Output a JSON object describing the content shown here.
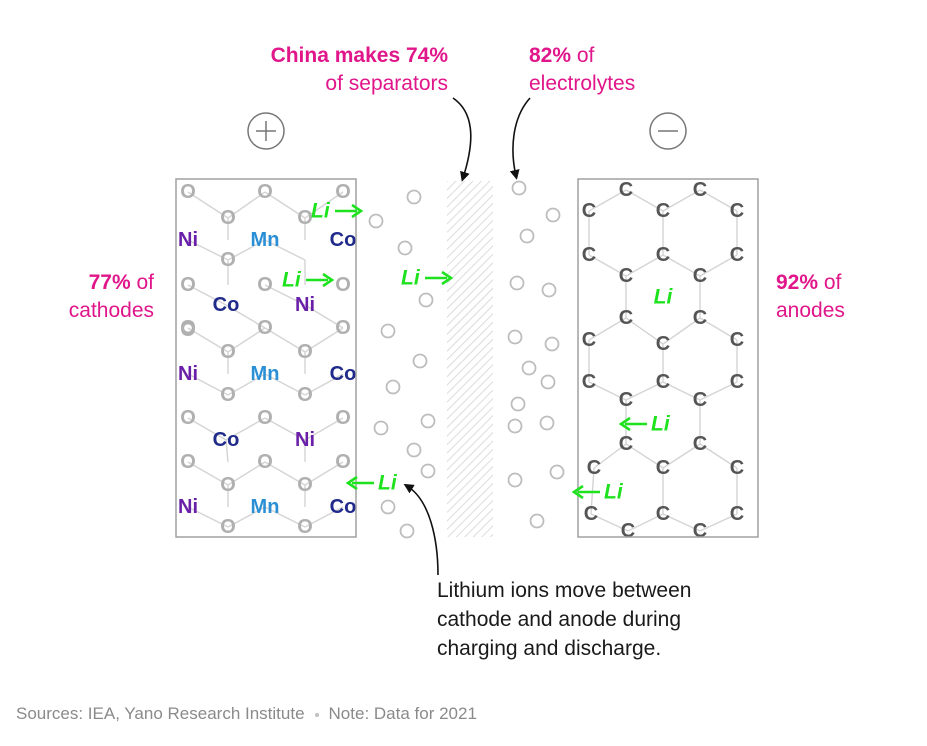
{
  "annotations": {
    "separators": {
      "bold": "China makes 74%",
      "rest": "of separators"
    },
    "electrolytes": {
      "bold": "82%",
      "rest_inline": " of",
      "rest": "electrolytes"
    },
    "cathodes": {
      "bold": "77%",
      "rest_inline": " of",
      "rest": "cathodes"
    },
    "anodes": {
      "bold": "92%",
      "rest_inline": " of",
      "rest": "anodes"
    }
  },
  "terminals": {
    "positive": "+",
    "negative": "−"
  },
  "elements": {
    "lithium": "Li",
    "oxygen": "O",
    "nickel": "Ni",
    "manganese": "Mn",
    "cobalt": "Co",
    "carbon": "C"
  },
  "caption": [
    "Lithium ions move between",
    "cathode and anode during",
    "charging and discharge."
  ],
  "footer": {
    "sources": "Sources: IEA, Yano Research Institute",
    "note": "Note: Data for 2021"
  },
  "colors": {
    "accent": "#e0168a",
    "lithium": "#1fe21f",
    "nickel": "#6a1fa8",
    "manganese": "#2b8fd6",
    "cobalt": "#1f2a8a",
    "carbon": "#555555",
    "oxygen": "#b0b0b0",
    "frame": "#a0a0a0"
  }
}
